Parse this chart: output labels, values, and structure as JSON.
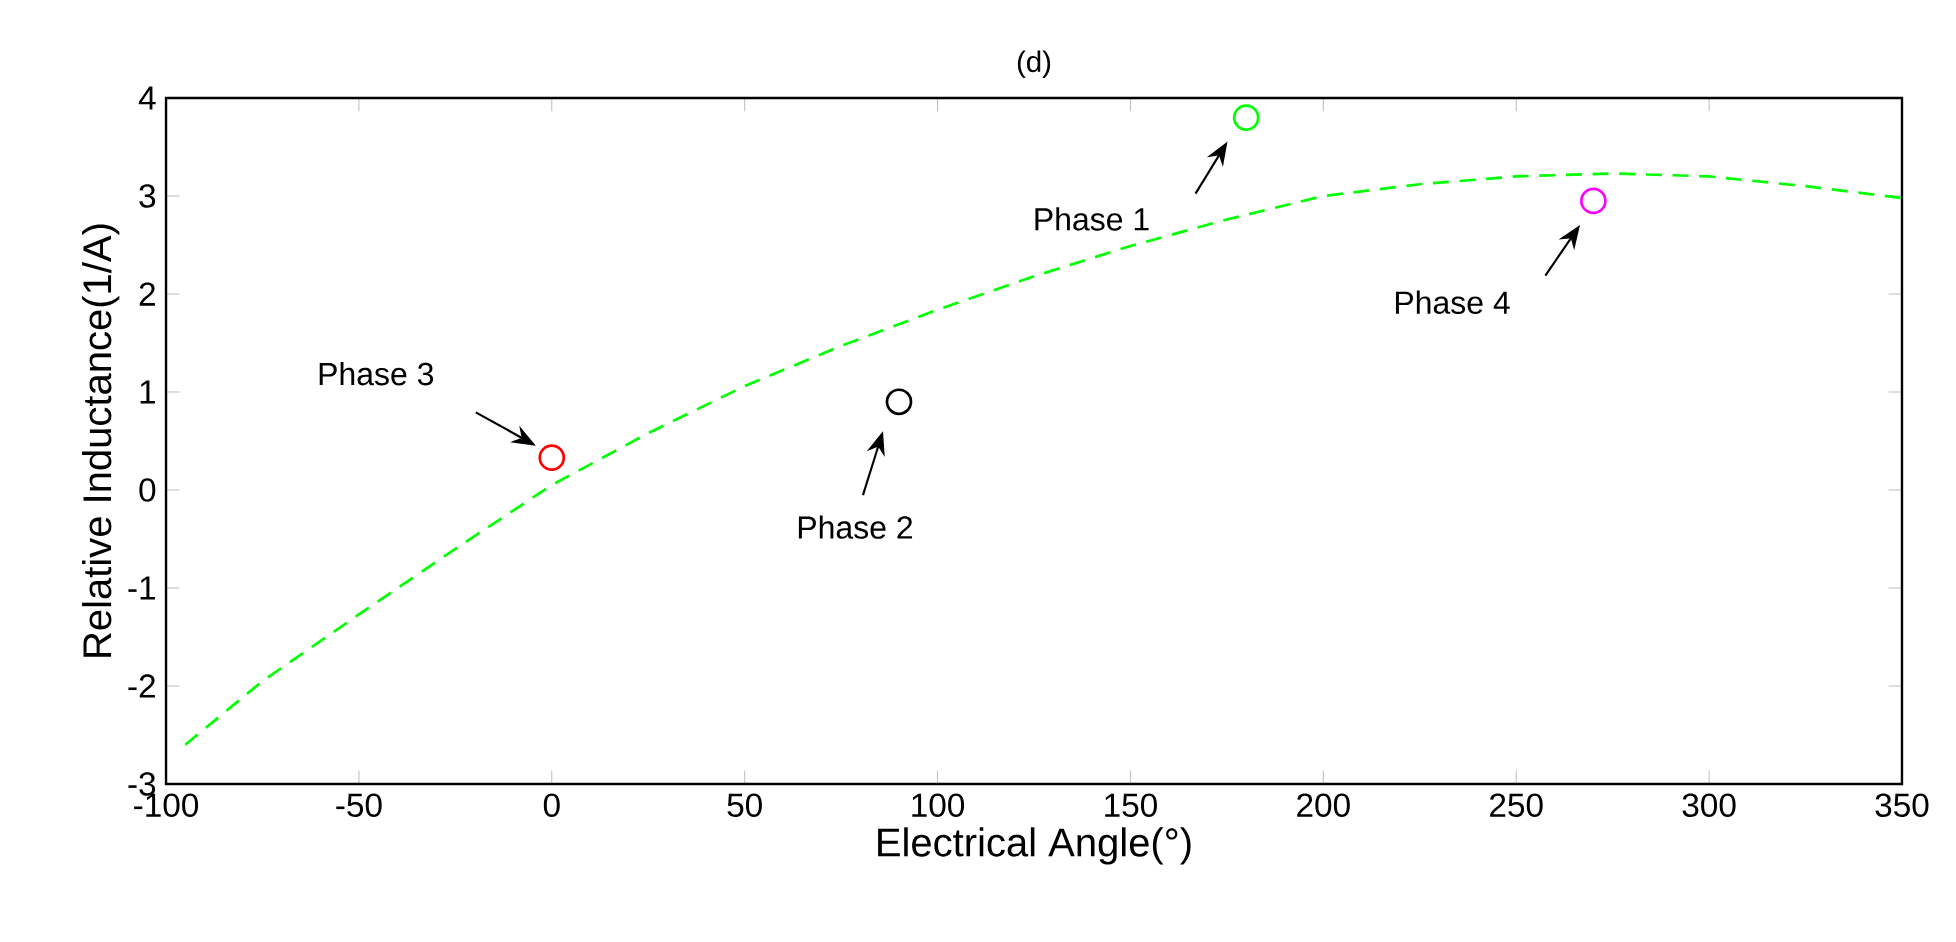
{
  "chart_data": {
    "type": "scatter",
    "title": "(d)",
    "xlabel": "Electrical Angle(°)",
    "ylabel": "Relative Inductance(1/A)",
    "xlim": [
      -100,
      350
    ],
    "ylim": [
      -3,
      4
    ],
    "xticks": [
      -100,
      -50,
      0,
      50,
      100,
      150,
      200,
      250,
      300,
      350
    ],
    "yticks": [
      -3,
      -2,
      -1,
      0,
      1,
      2,
      3,
      4
    ],
    "series": [
      {
        "type": "line",
        "color": "#00ff00",
        "line_style": "dashed",
        "marker": "none",
        "x": [
          -95,
          -75,
          -50,
          -25,
          0,
          25,
          50,
          75,
          100,
          125,
          150,
          175,
          200,
          225,
          250,
          275,
          300,
          325,
          350
        ],
        "values": [
          -2.6,
          -1.95,
          -1.27,
          -0.6,
          0.05,
          0.58,
          1.06,
          1.47,
          1.84,
          2.18,
          2.49,
          2.76,
          3.0,
          3.12,
          3.2,
          3.23,
          3.2,
          3.1,
          2.98
        ]
      },
      {
        "marker": "circle",
        "x": [
          180,
          90,
          0,
          270
        ],
        "values": [
          3.8,
          0.9,
          0.33,
          2.95
        ],
        "colors": [
          "#00ff00",
          "#000000",
          "#ff0000",
          "#ff00ff"
        ]
      }
    ],
    "annotations": [
      "Phase 1",
      "Phase 2",
      "Phase 3",
      "Phase 4"
    ]
  }
}
